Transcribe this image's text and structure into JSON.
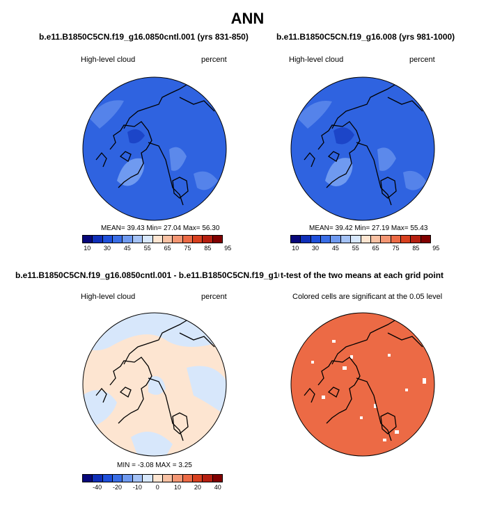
{
  "title": "ANN",
  "panels": {
    "top_left": {
      "title": "b.e11.B1850C5CN.f19_g16.0850cntl.001 (yrs 831-850)",
      "left_label": "High-level cloud",
      "right_label": "percent",
      "stats": "MEAN= 39.43  Min= 27.04  Max= 56.30"
    },
    "top_right": {
      "title": "b.e11.B1850C5CN.f19_g16.008 (yrs 981-1000)",
      "left_label": "High-level cloud",
      "right_label": "percent",
      "stats": "MEAN= 39.42  Min= 27.19  Max= 55.43"
    },
    "bottom_left": {
      "title": "b.e11.B1850C5CN.f19_g16.0850cntl.001 - b.e11.B1850C5CN.f19_g16.008",
      "left_label": "High-level cloud",
      "right_label": "percent",
      "stats": "MIN =  -3.08 MAX =   3.25"
    },
    "bottom_right": {
      "title": "t-test of the two means at each grid point",
      "subtitle": "Colored cells are significant at the 0.05 level"
    }
  },
  "colorbar_abs": {
    "colors": [
      "#08087a",
      "#0f2fb8",
      "#1f50db",
      "#3a6ee6",
      "#6f9af0",
      "#a4c2f5",
      "#d7e7fb",
      "#fde5d1",
      "#f8c1a3",
      "#f39673",
      "#ec6a45",
      "#d8401f",
      "#b51f10",
      "#800000"
    ],
    "tick_labels": [
      "10",
      "30",
      "45",
      "55",
      "65",
      "75",
      "85",
      "95"
    ]
  },
  "colorbar_diff": {
    "colors": [
      "#08087a",
      "#0f2fb8",
      "#1f50db",
      "#3a6ee6",
      "#6f9af0",
      "#a4c2f5",
      "#d7e7fb",
      "#fde5d1",
      "#f8c1a3",
      "#f39673",
      "#ec6a45",
      "#d8401f",
      "#b51f10",
      "#800000"
    ],
    "tick_labels": [
      "-40",
      "-20",
      "-10",
      "0",
      "10",
      "20",
      "40"
    ]
  },
  "map_colors": {
    "abs_base": "#2f63e0",
    "abs_light": "#6f9af0",
    "abs_dark": "#1c45c8",
    "diff_base": "#fde5d1",
    "diff_blue": "#d7e7fb",
    "ttest": "#ec6a45"
  }
}
